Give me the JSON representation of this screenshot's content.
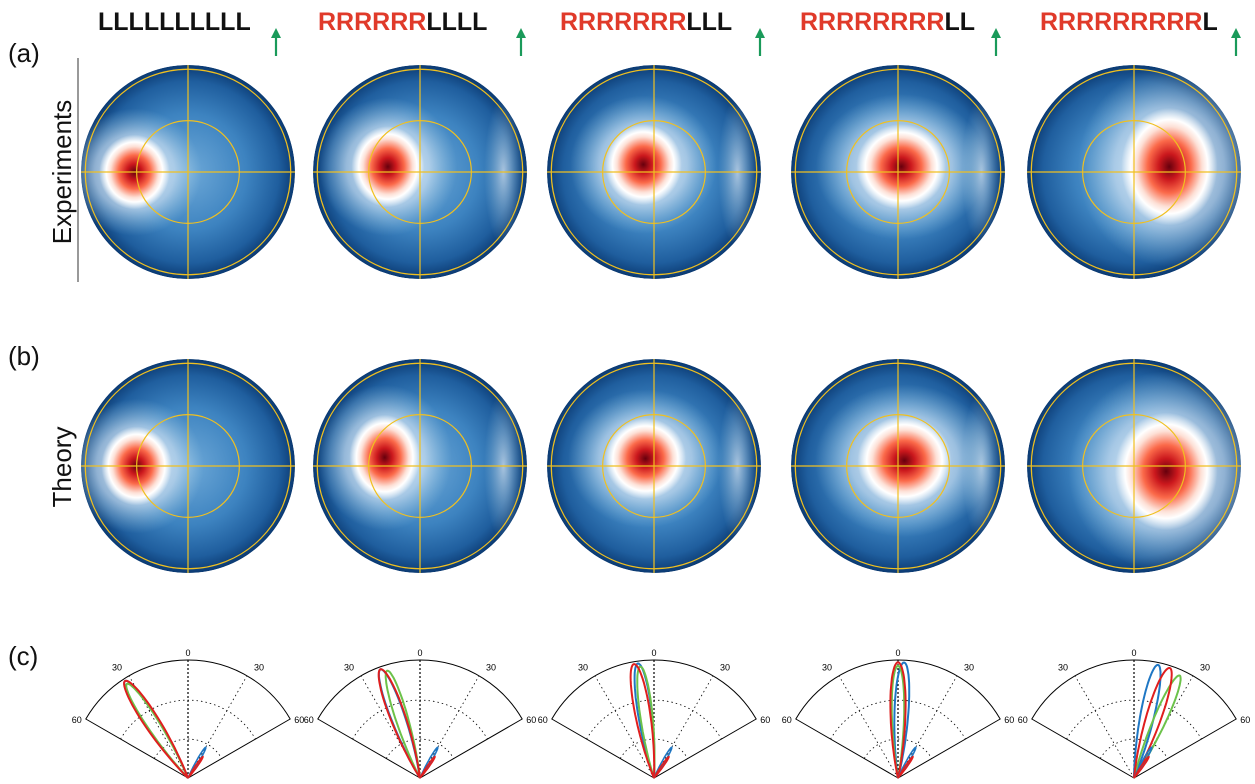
{
  "figure": {
    "panel_labels": [
      "(a)",
      "(b)",
      "(c)"
    ],
    "row_labels": [
      "Experiments",
      "Theory"
    ],
    "columns": [
      {
        "red": "",
        "black": "LLLLLLLLLL"
      },
      {
        "red": "RRRRRR",
        "black": "LLLL"
      },
      {
        "red": "RRRRRRR",
        "black": "LLL"
      },
      {
        "red": "RRRRRRRR",
        "black": "LL"
      },
      {
        "red": "RRRRRRRRR",
        "black": "L"
      }
    ],
    "polar_tick_labels": {
      "center": "0",
      "left_upper": "30",
      "right_upper": "30",
      "left_lower": "60",
      "right_lower": "60"
    }
  },
  "colors": {
    "arrow": "#1a9a5a",
    "header_red": "#e03a2a",
    "header_black": "#111111",
    "guide_lines": "#f0c020",
    "curve_red": "#e01e1e",
    "curve_blue": "#1f77c4",
    "curve_green": "#6cc24a",
    "colormap": [
      "#08306b",
      "#2171b5",
      "#6baed6",
      "#ffffff",
      "#fb6a4a",
      "#cb181d",
      "#67000d"
    ]
  },
  "chart_data": {
    "type": "heatmap",
    "description_of_values": "normalized intensity maps on a circular pupil; hotspot offset in x (fraction of radius), size, peak",
    "experiments_hotspot": [
      {
        "dx": -0.5,
        "dy": 0.0,
        "rx": 0.33,
        "ry": 0.35
      },
      {
        "dx": -0.3,
        "dy": -0.05,
        "rx": 0.34,
        "ry": 0.38
      },
      {
        "dx": -0.1,
        "dy": -0.07,
        "rx": 0.36,
        "ry": 0.38
      },
      {
        "dx": 0.03,
        "dy": -0.05,
        "rx": 0.42,
        "ry": 0.4
      },
      {
        "dx": 0.33,
        "dy": -0.05,
        "rx": 0.45,
        "ry": 0.55
      }
    ],
    "theory_hotspot": [
      {
        "dx": -0.48,
        "dy": 0.0,
        "rx": 0.33,
        "ry": 0.37
      },
      {
        "dx": -0.33,
        "dy": -0.08,
        "rx": 0.33,
        "ry": 0.4
      },
      {
        "dx": -0.08,
        "dy": -0.07,
        "rx": 0.38,
        "ry": 0.38
      },
      {
        "dx": 0.06,
        "dy": -0.05,
        "rx": 0.44,
        "ry": 0.42
      },
      {
        "dx": 0.3,
        "dy": 0.05,
        "rx": 0.48,
        "ry": 0.55
      }
    ],
    "polar_radiation_patterns": [
      {
        "red_peak_deg": -33,
        "blue_peak_deg": -33,
        "green_peak_deg": -33
      },
      {
        "red_peak_deg": -20,
        "blue_peak_deg": -20,
        "green_peak_deg": -17
      },
      {
        "red_peak_deg": -10,
        "blue_peak_deg": -8,
        "green_peak_deg": -7
      },
      {
        "red_peak_deg": 0,
        "blue_peak_deg": 3,
        "green_peak_deg": 0
      },
      {
        "red_peak_deg": 18,
        "blue_peak_deg": 12,
        "green_peak_deg": 24
      }
    ],
    "polar_axis": {
      "theta_range_deg": [
        -60,
        60
      ],
      "ticks_deg": [
        -60,
        -30,
        0,
        30,
        60
      ]
    }
  }
}
